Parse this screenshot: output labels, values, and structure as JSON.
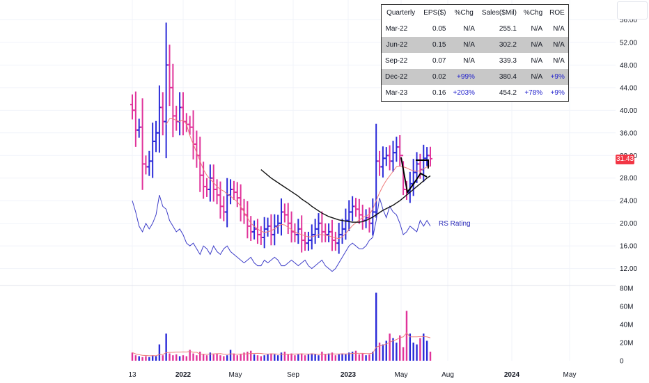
{
  "colors": {
    "up_bar": "#2a2ad8",
    "down_bar": "#e0339a",
    "rs_line": "#3d3dc8",
    "ma_fast": "#ef7a7a",
    "ma_slow": "#111111",
    "grid": "#f0f3fa",
    "price_badge": "#f23645"
  },
  "price_badge_value": "31.43",
  "rs_label": "RS Rating",
  "eps_table": {
    "headers": [
      "Quarterly",
      "EPS($)",
      "%Chg",
      "Sales($Mil)",
      "%Chg",
      "ROE"
    ],
    "rows": [
      {
        "quarter": "Mar-22",
        "eps": "0.05",
        "eps_chg": "N/A",
        "sales": "255.1",
        "sales_chg": "N/A",
        "roe": "N/A",
        "shaded": false
      },
      {
        "quarter": "Jun-22",
        "eps": "0.15",
        "eps_chg": "N/A",
        "sales": "302.2",
        "sales_chg": "N/A",
        "roe": "N/A",
        "shaded": true
      },
      {
        "quarter": "Sep-22",
        "eps": "0.07",
        "eps_chg": "N/A",
        "sales": "339.3",
        "sales_chg": "N/A",
        "roe": "N/A",
        "shaded": false
      },
      {
        "quarter": "Dec-22",
        "eps": "0.02",
        "eps_chg": "+99%",
        "sales": "380.4",
        "sales_chg": "N/A",
        "roe": "+9%",
        "shaded": true
      },
      {
        "quarter": "Mar-23",
        "eps": "0.16",
        "eps_chg": "+203%",
        "sales": "454.2",
        "sales_chg": "+78%",
        "roe": "+9%",
        "shaded": false
      }
    ]
  },
  "chart_data": {
    "type": "ohlc",
    "price_axis": {
      "ticks": [
        "56.00",
        "52.00",
        "48.00",
        "44.00",
        "40.00",
        "36.00",
        "32.00",
        "28.00",
        "24.00",
        "20.00",
        "16.00",
        "12.00"
      ],
      "range": [
        9.0,
        59.5
      ]
    },
    "volume_axis": {
      "ticks": [
        "80M",
        "60M",
        "40M",
        "20M",
        "0"
      ],
      "range": [
        0,
        83
      ]
    },
    "x_axis": {
      "ticks": [
        {
          "label": "13",
          "bold": false
        },
        {
          "label": "2022",
          "bold": true
        },
        {
          "label": "May",
          "bold": false
        },
        {
          "label": "Sep",
          "bold": false
        },
        {
          "label": "2023",
          "bold": true
        },
        {
          "label": "May",
          "bold": false
        },
        {
          "label": "Aug",
          "bold": false
        },
        {
          "label": "2024",
          "bold": true
        },
        {
          "label": "May",
          "bold": false
        }
      ]
    },
    "price_close": [
      40.0,
      36.5,
      37.0,
      30.5,
      30.0,
      31.0,
      34.5,
      36.0,
      40.5,
      38.0,
      48.0,
      44.0,
      39.0,
      38.0,
      40.5,
      38.0,
      37.5,
      37.0,
      34.0,
      32.0,
      28.5,
      26.5,
      26.0,
      28.0,
      26.0,
      25.0,
      23.0,
      22.0,
      25.0,
      26.0,
      25.5,
      24.5,
      22.5,
      21.5,
      19.5,
      18.5,
      19.0,
      18.0,
      17.5,
      19.0,
      19.5,
      18.0,
      19.5,
      20.0,
      22.0,
      21.5,
      20.0,
      18.5,
      18.0,
      19.0,
      17.0,
      16.5,
      17.0,
      18.0,
      19.0,
      20.0,
      18.5,
      18.0,
      18.5,
      17.0,
      16.5,
      18.0,
      19.0,
      20.5,
      22.0,
      23.0,
      22.5,
      21.5,
      20.5,
      21.0,
      20.0,
      22.0,
      31.0,
      30.0,
      31.5,
      32.0,
      31.0,
      32.5,
      33.5,
      32.0,
      26.0,
      25.5,
      27.0,
      29.0,
      30.5,
      29.5,
      31.5,
      32.0,
      31.43
    ],
    "rs_rating": [
      24,
      22,
      19.5,
      18.5,
      20,
      19,
      20,
      21.5,
      25,
      23,
      22.5,
      20.5,
      19.5,
      18.5,
      19,
      18,
      16.5,
      16,
      16.5,
      15.5,
      14.5,
      16,
      15.5,
      14.5,
      16,
      15,
      14.5,
      15.5,
      16,
      15,
      14.5,
      14,
      13.5,
      13,
      13.5,
      14,
      13,
      12.5,
      12.5,
      13.5,
      13,
      13.5,
      14,
      13.5,
      12.5,
      12.5,
      13,
      13.5,
      13,
      12.5,
      13,
      13.5,
      12.5,
      12,
      12.5,
      13,
      13.5,
      12.5,
      12,
      11.5,
      12,
      13,
      14,
      15,
      16,
      16.5,
      16,
      15.5,
      15.5,
      16,
      17,
      17.5,
      20.5,
      24.5,
      22.5,
      21,
      23,
      22,
      21.5,
      20,
      18,
      18.5,
      19.5,
      19,
      18.5,
      20.5,
      19.5,
      20.5,
      19.5
    ],
    "ma_fast": [
      null,
      null,
      null,
      null,
      null,
      null,
      null,
      null,
      null,
      null,
      37.5,
      38.5,
      38.5,
      38.2,
      38.0,
      38.3,
      37.5,
      35.5,
      34.0,
      32.5,
      31.0,
      29.5,
      28.5,
      27.8,
      27.2,
      26.5,
      26.0,
      25.7,
      25.2,
      24.8,
      24.3,
      23.8,
      23.0,
      22.0,
      21.0,
      20.0,
      19.5,
      19.0,
      18.6,
      18.4,
      18.5,
      18.7,
      19.0,
      19.5,
      19.8,
      19.7,
      19.3,
      18.9,
      18.5,
      18.2,
      18.0,
      17.8,
      17.6,
      17.6,
      17.8,
      18.0,
      18.0,
      17.9,
      17.8,
      17.6,
      17.4,
      17.3,
      17.6,
      18.2,
      18.9,
      19.6,
      20.1,
      20.6,
      21.0,
      21.3,
      21.6,
      22.5,
      24.0,
      25.4,
      26.6,
      27.6,
      28.4,
      29.2,
      30.0,
      30.1,
      30.0,
      29.8,
      29.5,
      29.3,
      29.2,
      29.3,
      29.6,
      30.0,
      30.2
    ],
    "ma_slow": [
      null,
      null,
      null,
      null,
      null,
      null,
      null,
      null,
      null,
      null,
      null,
      null,
      null,
      null,
      null,
      null,
      null,
      null,
      null,
      null,
      null,
      null,
      null,
      null,
      null,
      null,
      null,
      null,
      null,
      null,
      null,
      null,
      null,
      null,
      null,
      null,
      null,
      null,
      29.5,
      29.0,
      28.5,
      28.0,
      27.6,
      27.2,
      26.8,
      26.4,
      26.0,
      25.6,
      25.2,
      24.8,
      24.3,
      23.9,
      23.5,
      23.0,
      22.6,
      22.2,
      21.8,
      21.5,
      21.2,
      21.0,
      20.8,
      20.6,
      20.5,
      20.4,
      20.3,
      20.2,
      20.2,
      20.2,
      20.3,
      20.5,
      20.8,
      21.1,
      21.5,
      21.9,
      22.3,
      22.6,
      22.9,
      23.2,
      23.6,
      24.0,
      24.5,
      25.0,
      25.5,
      26.0,
      26.5,
      27.0,
      27.5,
      28.0,
      28.4
    ],
    "volume": [
      9,
      6,
      5,
      4,
      5,
      4,
      6,
      5,
      18,
      6,
      30,
      8,
      6,
      7,
      5,
      6,
      5,
      12,
      8,
      6,
      10,
      7,
      6,
      9,
      7,
      8,
      6,
      5,
      6,
      12,
      8,
      6,
      7,
      9,
      10,
      11,
      7,
      6,
      5,
      6,
      7,
      8,
      7,
      6,
      9,
      10,
      7,
      8,
      6,
      7,
      8,
      6,
      7,
      8,
      7,
      6,
      10,
      7,
      8,
      9,
      6,
      7,
      8,
      7,
      9,
      10,
      11,
      7,
      8,
      6,
      7,
      10,
      75,
      20,
      18,
      22,
      30,
      25,
      20,
      28,
      15,
      55,
      30,
      20,
      18,
      25,
      30,
      22,
      10
    ]
  }
}
